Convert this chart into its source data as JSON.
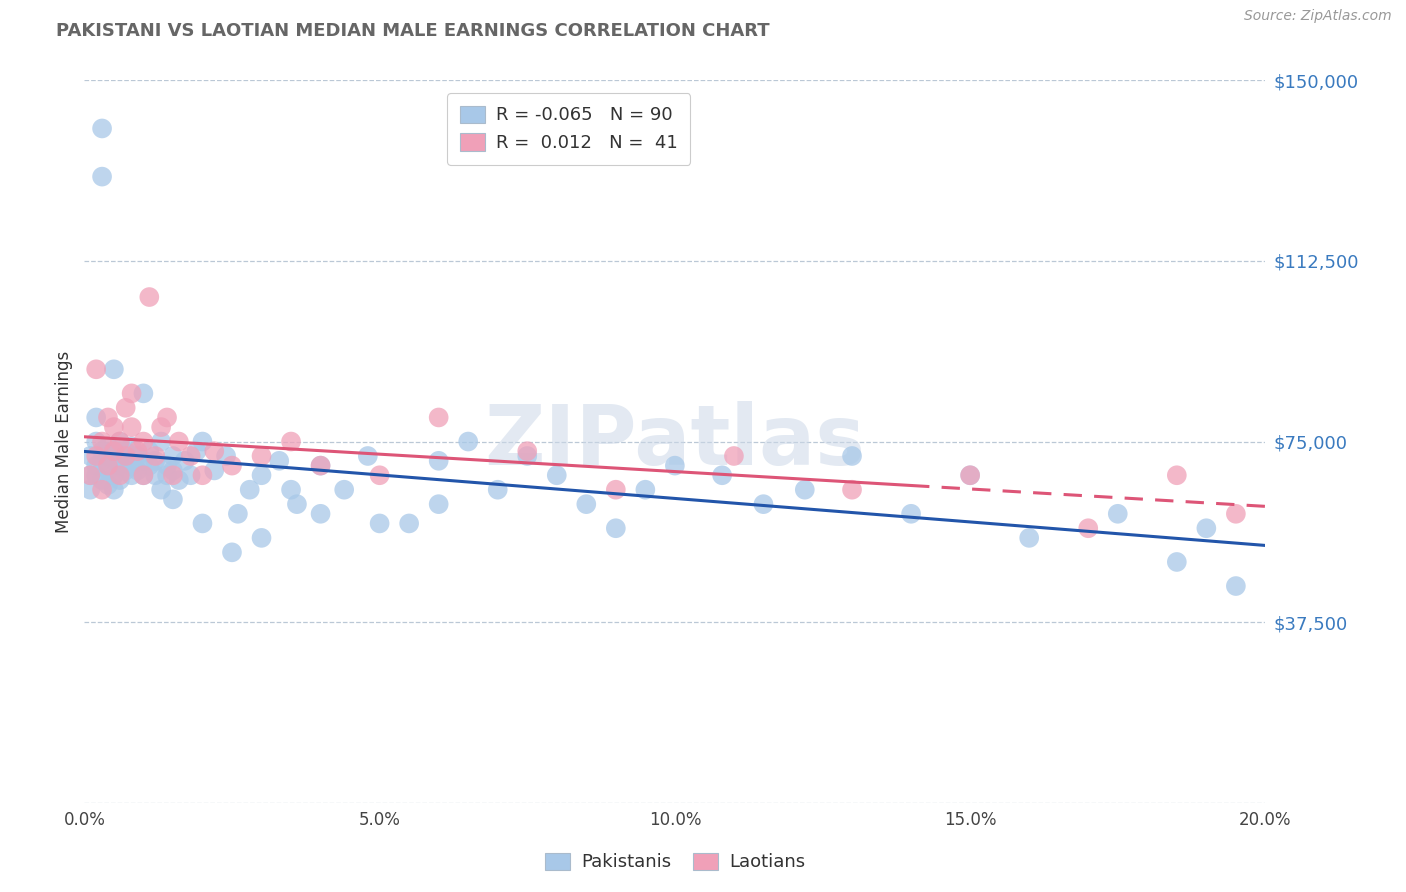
{
  "title": "PAKISTANI VS LAOTIAN MEDIAN MALE EARNINGS CORRELATION CHART",
  "source": "Source: ZipAtlas.com",
  "ylabel": "Median Male Earnings",
  "watermark": "ZIPatlas",
  "xlim": [
    0.0,
    0.2
  ],
  "ylim": [
    0,
    150000
  ],
  "yticks": [
    0,
    37500,
    75000,
    112500,
    150000
  ],
  "ytick_labels": [
    "",
    "$37,500",
    "$75,000",
    "$112,500",
    "$150,000"
  ],
  "xticks": [
    0.0,
    0.05,
    0.1,
    0.15,
    0.2
  ],
  "xtick_labels": [
    "0.0%",
    "5.0%",
    "10.0%",
    "15.0%",
    "20.0%"
  ],
  "pakistani_R": -0.065,
  "pakistani_N": 90,
  "laotian_R": 0.012,
  "laotian_N": 41,
  "blue_color": "#a8c8e8",
  "pink_color": "#f0a0b8",
  "blue_line_color": "#2255aa",
  "pink_line_color": "#dd5577",
  "legend_label_blue": "Pakistanis",
  "legend_label_pink": "Laotians",
  "pakistani_x": [
    0.001,
    0.001,
    0.001,
    0.002,
    0.002,
    0.002,
    0.002,
    0.003,
    0.003,
    0.003,
    0.003,
    0.003,
    0.004,
    0.004,
    0.004,
    0.004,
    0.005,
    0.005,
    0.005,
    0.005,
    0.005,
    0.006,
    0.006,
    0.006,
    0.006,
    0.007,
    0.007,
    0.007,
    0.008,
    0.008,
    0.008,
    0.009,
    0.009,
    0.01,
    0.01,
    0.01,
    0.011,
    0.011,
    0.012,
    0.012,
    0.013,
    0.013,
    0.014,
    0.014,
    0.015,
    0.015,
    0.016,
    0.017,
    0.018,
    0.019,
    0.02,
    0.022,
    0.024,
    0.026,
    0.028,
    0.03,
    0.033,
    0.036,
    0.04,
    0.044,
    0.048,
    0.055,
    0.06,
    0.065,
    0.07,
    0.075,
    0.08,
    0.085,
    0.09,
    0.095,
    0.1,
    0.108,
    0.115,
    0.122,
    0.13,
    0.14,
    0.15,
    0.16,
    0.175,
    0.185,
    0.19,
    0.195,
    0.015,
    0.02,
    0.025,
    0.03,
    0.035,
    0.04,
    0.05,
    0.06
  ],
  "pakistani_y": [
    68000,
    72000,
    65000,
    70000,
    75000,
    68000,
    80000,
    73000,
    67000,
    71000,
    130000,
    140000,
    69000,
    74000,
    66000,
    72000,
    71000,
    65000,
    68000,
    73000,
    90000,
    70000,
    67000,
    72000,
    75000,
    69000,
    73000,
    71000,
    68000,
    74000,
    70000,
    72000,
    69000,
    71000,
    68000,
    85000,
    70000,
    73000,
    68000,
    71000,
    65000,
    75000,
    70000,
    68000,
    72000,
    69000,
    67000,
    71000,
    68000,
    73000,
    75000,
    69000,
    72000,
    60000,
    65000,
    68000,
    71000,
    62000,
    70000,
    65000,
    72000,
    58000,
    71000,
    75000,
    65000,
    72000,
    68000,
    62000,
    57000,
    65000,
    70000,
    68000,
    62000,
    65000,
    72000,
    60000,
    68000,
    55000,
    60000,
    50000,
    57000,
    45000,
    63000,
    58000,
    52000,
    55000,
    65000,
    60000,
    58000,
    62000
  ],
  "laotian_x": [
    0.001,
    0.002,
    0.002,
    0.003,
    0.003,
    0.004,
    0.004,
    0.005,
    0.005,
    0.006,
    0.006,
    0.007,
    0.007,
    0.008,
    0.008,
    0.009,
    0.01,
    0.01,
    0.011,
    0.012,
    0.013,
    0.014,
    0.015,
    0.016,
    0.018,
    0.02,
    0.022,
    0.025,
    0.03,
    0.035,
    0.04,
    0.05,
    0.06,
    0.075,
    0.09,
    0.11,
    0.13,
    0.15,
    0.17,
    0.185,
    0.195
  ],
  "laotian_y": [
    68000,
    72000,
    90000,
    75000,
    65000,
    70000,
    80000,
    73000,
    78000,
    75000,
    68000,
    82000,
    72000,
    85000,
    78000,
    73000,
    75000,
    68000,
    105000,
    72000,
    78000,
    80000,
    68000,
    75000,
    72000,
    68000,
    73000,
    70000,
    72000,
    75000,
    70000,
    68000,
    80000,
    73000,
    65000,
    72000,
    65000,
    68000,
    57000,
    68000,
    60000
  ]
}
